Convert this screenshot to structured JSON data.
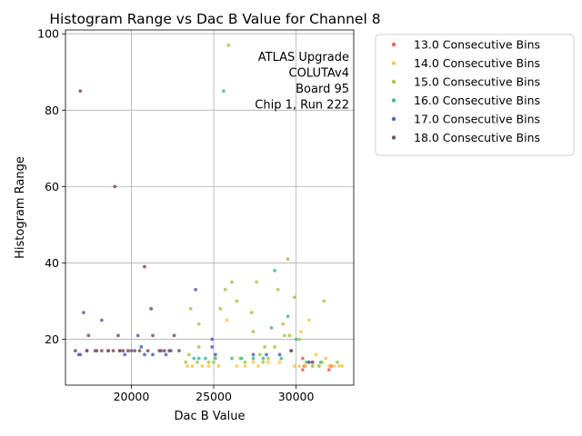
{
  "chart_data": {
    "type": "scatter",
    "title": "Histogram Range vs Dac B Value for Channel 8",
    "xlabel": "Dac B Value",
    "ylabel": "Histogram Range",
    "xlim": [
      16000,
      33500
    ],
    "ylim": [
      8,
      101
    ],
    "xticks": [
      20000,
      25000,
      30000
    ],
    "yticks": [
      20,
      40,
      60,
      80,
      100
    ],
    "grid": true,
    "legend_position": "outside-right",
    "annotation": [
      "ATLAS Upgrade",
      "COLUTAv4",
      "Board 95",
      "Chip 1, Run 222"
    ],
    "series": [
      {
        "name": "13.0 Consecutive Bins",
        "color": "#f0605a",
        "points": [
          [
            30400,
            12
          ],
          [
            30400,
            15
          ],
          [
            32000,
            12
          ],
          [
            32100,
            13
          ],
          [
            30500,
            13
          ]
        ]
      },
      {
        "name": "14.0 Consecutive Bins",
        "color": "#f9c74f",
        "points": [
          [
            23400,
            13
          ],
          [
            23700,
            13
          ],
          [
            24300,
            13
          ],
          [
            24700,
            13
          ],
          [
            25300,
            13
          ],
          [
            25800,
            25
          ],
          [
            26400,
            13
          ],
          [
            26900,
            13
          ],
          [
            27400,
            14
          ],
          [
            27700,
            13
          ],
          [
            28300,
            14
          ],
          [
            29000,
            14
          ],
          [
            29900,
            13
          ],
          [
            30200,
            13
          ],
          [
            30300,
            22
          ],
          [
            30600,
            13
          ],
          [
            30800,
            25
          ],
          [
            31000,
            13
          ],
          [
            31200,
            16
          ],
          [
            31400,
            13
          ],
          [
            31600,
            14
          ],
          [
            31800,
            15
          ],
          [
            32000,
            13
          ],
          [
            32300,
            13
          ],
          [
            32600,
            13
          ],
          [
            32800,
            13
          ]
        ]
      },
      {
        "name": "15.0 Consecutive Bins",
        "color": "#a5c84e",
        "points": [
          [
            23300,
            14
          ],
          [
            23500,
            16
          ],
          [
            23600,
            28
          ],
          [
            24000,
            14
          ],
          [
            24100,
            24
          ],
          [
            24100,
            18
          ],
          [
            24700,
            14
          ],
          [
            25000,
            14
          ],
          [
            25400,
            28
          ],
          [
            25700,
            33
          ],
          [
            25900,
            97
          ],
          [
            26100,
            35
          ],
          [
            26400,
            30
          ],
          [
            26600,
            15
          ],
          [
            26900,
            14
          ],
          [
            27300,
            27
          ],
          [
            27400,
            22
          ],
          [
            27600,
            35
          ],
          [
            27800,
            16
          ],
          [
            28000,
            14
          ],
          [
            28100,
            18
          ],
          [
            28300,
            15
          ],
          [
            28700,
            18
          ],
          [
            28900,
            33
          ],
          [
            29200,
            24
          ],
          [
            29300,
            21
          ],
          [
            29500,
            41
          ],
          [
            29600,
            21
          ],
          [
            29900,
            31
          ],
          [
            30200,
            20
          ],
          [
            30600,
            14
          ],
          [
            31000,
            13
          ],
          [
            31400,
            13
          ],
          [
            31700,
            30
          ],
          [
            32500,
            14
          ]
        ]
      },
      {
        "name": "16.0 Consecutive Bins",
        "color": "#43bf97",
        "points": [
          [
            23800,
            15
          ],
          [
            24100,
            15
          ],
          [
            24500,
            15
          ],
          [
            25100,
            15
          ],
          [
            25600,
            85
          ],
          [
            26100,
            15
          ],
          [
            26700,
            15
          ],
          [
            27400,
            15
          ],
          [
            28000,
            15
          ],
          [
            28500,
            23
          ],
          [
            28700,
            38
          ],
          [
            29100,
            15
          ],
          [
            29500,
            26
          ],
          [
            30000,
            20
          ],
          [
            30700,
            14
          ],
          [
            31500,
            14
          ]
        ]
      },
      {
        "name": "17.0 Consecutive Bins",
        "color": "#5462b8",
        "points": [
          [
            16800,
            16
          ],
          [
            16900,
            16
          ],
          [
            17100,
            27
          ],
          [
            17300,
            17
          ],
          [
            17800,
            17
          ],
          [
            18200,
            25
          ],
          [
            18600,
            17
          ],
          [
            19300,
            17
          ],
          [
            19600,
            16
          ],
          [
            20000,
            17
          ],
          [
            20400,
            21
          ],
          [
            20600,
            18
          ],
          [
            20800,
            16
          ],
          [
            21300,
            16
          ],
          [
            21800,
            17
          ],
          [
            22100,
            16
          ],
          [
            22400,
            17
          ],
          [
            23900,
            33
          ],
          [
            24900,
            20
          ],
          [
            24900,
            18
          ],
          [
            25100,
            16
          ],
          [
            27400,
            16
          ],
          [
            28200,
            16
          ],
          [
            29000,
            16
          ],
          [
            29700,
            17
          ],
          [
            30800,
            14
          ]
        ]
      },
      {
        "name": "18.0 Consecutive Bins",
        "color": "#7e4e5c",
        "points": [
          [
            16600,
            17
          ],
          [
            16900,
            85
          ],
          [
            17300,
            17
          ],
          [
            17400,
            21
          ],
          [
            17900,
            17
          ],
          [
            18200,
            17
          ],
          [
            18600,
            17
          ],
          [
            18900,
            17
          ],
          [
            19000,
            60
          ],
          [
            19200,
            21
          ],
          [
            19300,
            17
          ],
          [
            19500,
            17
          ],
          [
            19800,
            17
          ],
          [
            20200,
            17
          ],
          [
            20500,
            17
          ],
          [
            20800,
            39
          ],
          [
            21000,
            17
          ],
          [
            21200,
            28
          ],
          [
            21300,
            21
          ],
          [
            21700,
            17
          ],
          [
            22000,
            17
          ],
          [
            22300,
            17
          ],
          [
            22600,
            21
          ],
          [
            22900,
            17
          ],
          [
            29700,
            17
          ],
          [
            31000,
            14
          ]
        ]
      }
    ]
  }
}
